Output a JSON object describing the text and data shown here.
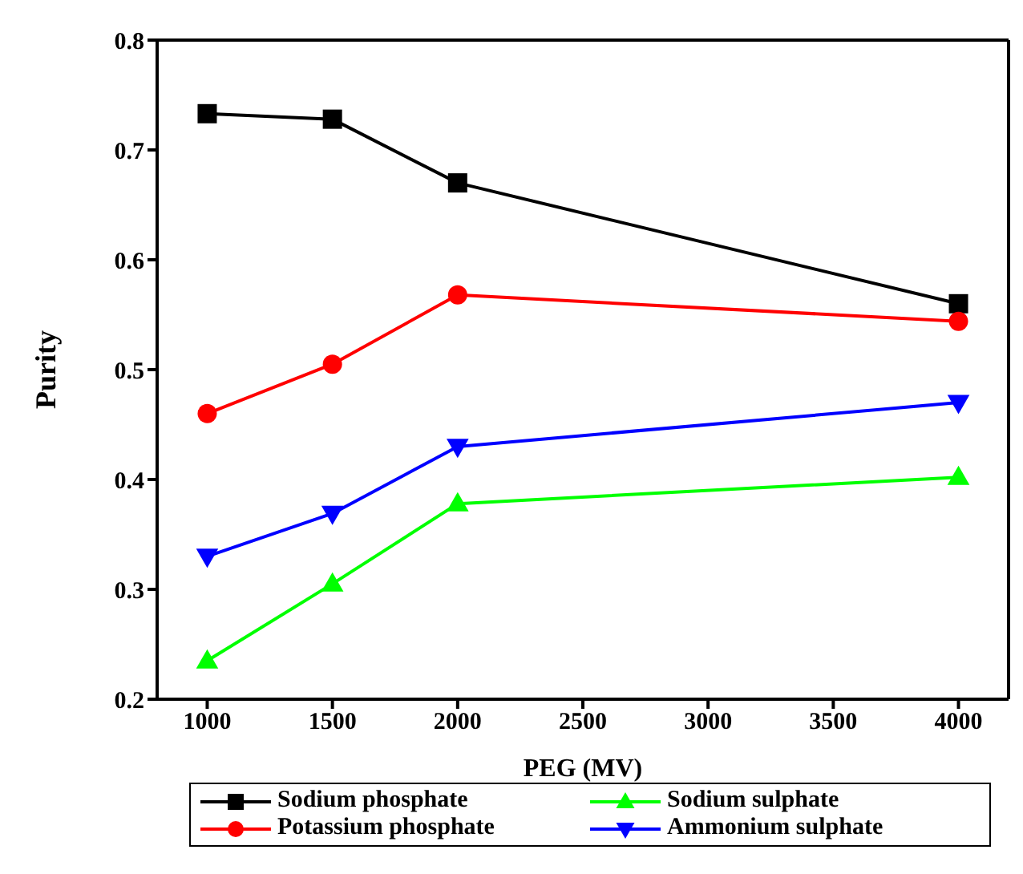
{
  "chart_data": {
    "type": "line",
    "xlabel": "PEG (MV)",
    "ylabel": "Purity",
    "x": [
      1000,
      1500,
      2000,
      4000
    ],
    "xlim": [
      800,
      4200
    ],
    "xticks": [
      1000,
      1500,
      2000,
      2500,
      3000,
      3500,
      4000
    ],
    "ylim": [
      0.2,
      0.8
    ],
    "yticks": [
      0.2,
      0.3,
      0.4,
      0.5,
      0.6,
      0.7,
      0.8
    ],
    "grid": false,
    "legend": "bottom",
    "line_style": "solid",
    "series": [
      {
        "name": "Sodium phosphate",
        "color": "#000000",
        "marker": "square",
        "values": [
          0.733,
          0.728,
          0.67,
          0.56
        ]
      },
      {
        "name": "Sodium sulphate",
        "color": "#00ff00",
        "marker": "triangle",
        "values": [
          0.235,
          0.305,
          0.378,
          0.402
        ]
      },
      {
        "name": "Potassium phosphate",
        "color": "#ff0000",
        "marker": "circle",
        "values": [
          0.46,
          0.505,
          0.568,
          0.544
        ]
      },
      {
        "name": "Ammonium sulphate",
        "color": "#0000ff",
        "marker": "triangle-down",
        "values": [
          0.33,
          0.369,
          0.43,
          0.47
        ]
      }
    ]
  }
}
